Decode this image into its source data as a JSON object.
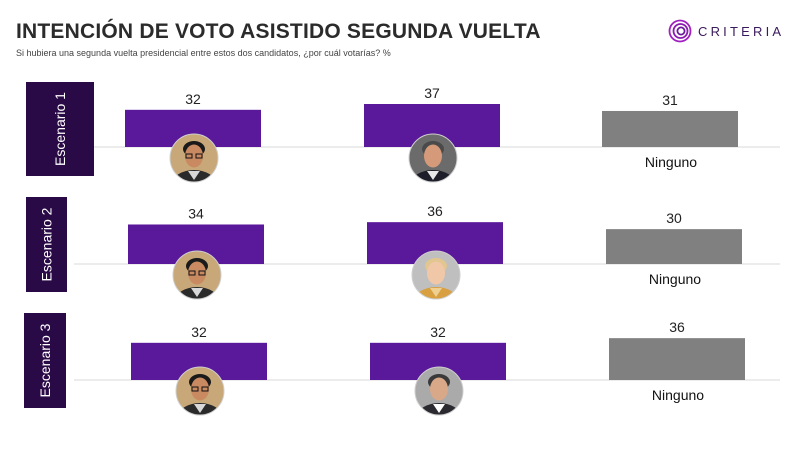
{
  "title": "INTENCIÓN DE VOTO ASISTIDO SEGUNDA VUELTA",
  "subtitle": "Si hubiera una segunda vuelta presidencial entre estos dos candidatos, ¿por cuál votarías? %",
  "brand": {
    "name": "CRITERIA",
    "logo_icon": "criteria-swirl-icon"
  },
  "colors": {
    "candidate": "#5a189a",
    "none": "#808080",
    "scenario_band": "#2a0a46",
    "axis": "#d9d9d9"
  },
  "chart_data": {
    "type": "bar",
    "title": "INTENCIÓN DE VOTO ASISTIDO SEGUNDA VUELTA",
    "subtitle": "Si hubiera una segunda vuelta presidencial entre estos dos candidatos, ¿por cuál votarías? %",
    "ylim": [
      0,
      40
    ],
    "grid": false,
    "scenarios": [
      {
        "label": "Escenario 1",
        "values": [
          32,
          37,
          31
        ],
        "options": [
          {
            "type": "photo",
            "icon": "candidate-a-photo-icon"
          },
          {
            "type": "photo",
            "icon": "candidate-b-photo-icon"
          },
          {
            "type": "text",
            "label": "Ninguno"
          }
        ]
      },
      {
        "label": "Escenario 2",
        "values": [
          34,
          36,
          30
        ],
        "options": [
          {
            "type": "photo",
            "icon": "candidate-a-photo-icon"
          },
          {
            "type": "photo",
            "icon": "candidate-c-photo-icon"
          },
          {
            "type": "text",
            "label": "Ninguno"
          }
        ]
      },
      {
        "label": "Escenario 3",
        "values": [
          32,
          32,
          36
        ],
        "options": [
          {
            "type": "photo",
            "icon": "candidate-a-photo-icon"
          },
          {
            "type": "photo",
            "icon": "candidate-d-photo-icon"
          },
          {
            "type": "text",
            "label": "Ninguno"
          }
        ]
      }
    ]
  }
}
